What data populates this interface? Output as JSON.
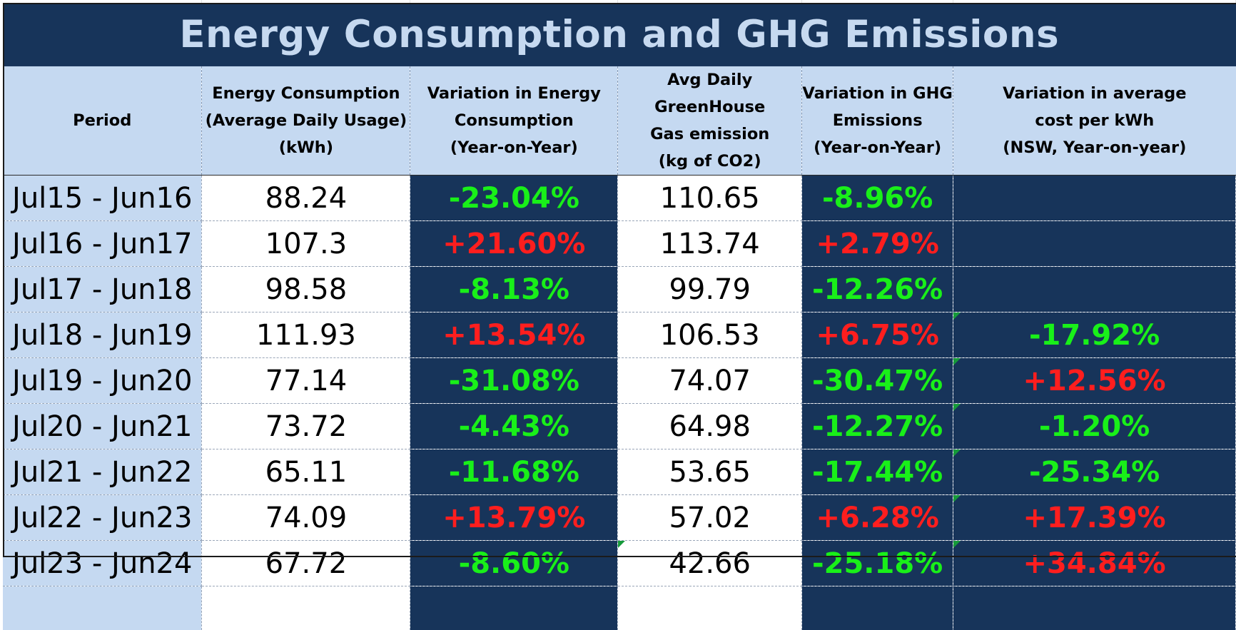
{
  "title": "Energy Consumption and GHG Emissions",
  "headers": [
    [
      "Period"
    ],
    [
      "Energy Consumption",
      "(Average Daily Usage)",
      "(kWh)"
    ],
    [
      "Variation in Energy",
      "Consumption",
      "(Year-on-Year)"
    ],
    [
      "Avg Daily GreenHouse",
      "Gas emission",
      "(kg of CO2)"
    ],
    [
      "Variation in GHG",
      "Emissions",
      "(Year-on-Year)"
    ],
    [
      "Variation in average",
      "cost per kWh",
      "(NSW, Year-on-year)"
    ]
  ],
  "rows": [
    {
      "period": "Jul15 - Jun16",
      "energy": "88.24",
      "energy_var": "-23.04%",
      "ghg": "110.65",
      "ghg_var": "-8.96%",
      "cost_var": ""
    },
    {
      "period": "Jul16 - Jun17",
      "energy": "107.3",
      "energy_var": "+21.60%",
      "ghg": "113.74",
      "ghg_var": "+2.79%",
      "cost_var": ""
    },
    {
      "period": "Jul17 - Jun18",
      "energy": "98.58",
      "energy_var": "-8.13%",
      "ghg": "99.79",
      "ghg_var": "-12.26%",
      "cost_var": ""
    },
    {
      "period": "Jul18 - Jun19",
      "energy": "111.93",
      "energy_var": "+13.54%",
      "ghg": "106.53",
      "ghg_var": "+6.75%",
      "cost_var": "-17.92%"
    },
    {
      "period": "Jul19 - Jun20",
      "energy": "77.14",
      "energy_var": "-31.08%",
      "ghg": "74.07",
      "ghg_var": "-30.47%",
      "cost_var": "+12.56%"
    },
    {
      "period": "Jul20 - Jun21",
      "energy": "73.72",
      "energy_var": "-4.43%",
      "ghg": "64.98",
      "ghg_var": "-12.27%",
      "cost_var": "-1.20%"
    },
    {
      "period": "Jul21 - Jun22",
      "energy": "65.11",
      "energy_var": "-11.68%",
      "ghg": "53.65",
      "ghg_var": "-17.44%",
      "cost_var": "-25.34%"
    },
    {
      "period": "Jul22 - Jun23",
      "energy": "74.09",
      "energy_var": "+13.79%",
      "ghg": "57.02",
      "ghg_var": "+6.28%",
      "cost_var": "+17.39%"
    },
    {
      "period": "Jul23 - Jun24",
      "energy": "67.72",
      "energy_var": "-8.60%",
      "ghg": "42.66",
      "ghg_var": "-25.18%",
      "cost_var": "+34.84%"
    }
  ],
  "colors": {
    "navy": "#17345a",
    "header_blue": "#c5d9f1",
    "title_text": "#c6d9f0",
    "increase_red": "#ff1e1e",
    "decrease_green": "#19f019"
  }
}
